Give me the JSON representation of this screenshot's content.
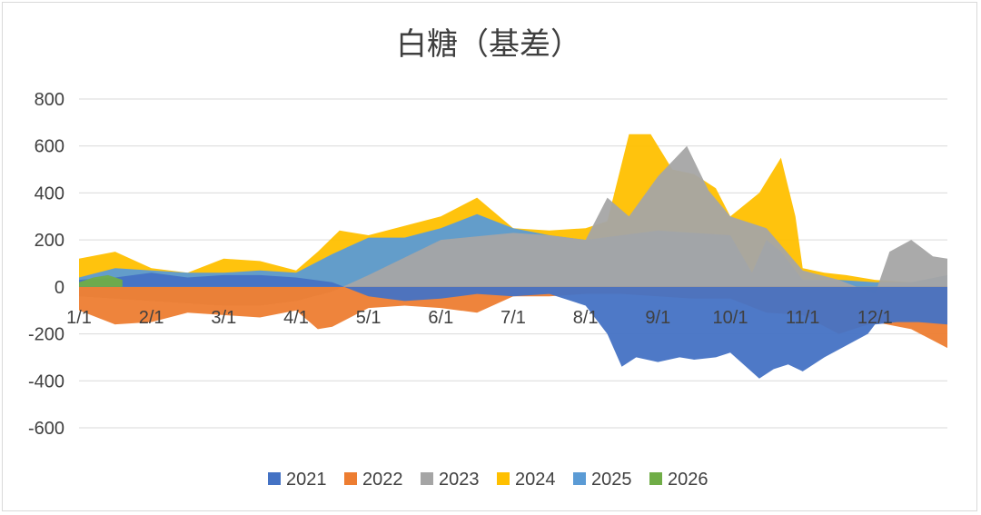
{
  "chart_data": {
    "type": "area",
    "title": "白糖（基差）",
    "xlabel": "",
    "ylabel": "",
    "ylim": [
      -600,
      800
    ],
    "y_ticks": [
      800,
      600,
      400,
      200,
      0,
      -200,
      -400,
      -600
    ],
    "y_tick_labels": [
      "800",
      "600",
      "400",
      "200",
      "0",
      "-200",
      "-400",
      "-600"
    ],
    "x_ticks": [
      {
        "label": "1/1",
        "month": 0
      },
      {
        "label": "2/1",
        "month": 1
      },
      {
        "label": "3/1",
        "month": 2
      },
      {
        "label": "4/1",
        "month": 3
      },
      {
        "label": "5/1",
        "month": 4
      },
      {
        "label": "6/1",
        "month": 5
      },
      {
        "label": "7/1",
        "month": 6
      },
      {
        "label": "8/1",
        "month": 7
      },
      {
        "label": "9/1",
        "month": 8
      },
      {
        "label": "10/1",
        "month": 9
      },
      {
        "label": "11/1",
        "month": 10
      },
      {
        "label": "12/1",
        "month": 11
      }
    ],
    "grid": true,
    "legend_position": "bottom",
    "x_unit": "month (0 = 1/1, 12 = end of year)",
    "series": [
      {
        "name": "2021",
        "color": "#4472c4",
        "draw_order": 5,
        "x": [
          0,
          0.5,
          1,
          1.5,
          2,
          2.5,
          3,
          3.5,
          4,
          4.5,
          5,
          5.5,
          6,
          6.5,
          7,
          7.3,
          7.5,
          7.7,
          8,
          8.3,
          8.5,
          8.8,
          9,
          9.4,
          9.6,
          9.8,
          10,
          10.3,
          10.6,
          10.9,
          11,
          11.3,
          11.6,
          12
        ],
        "values": [
          30,
          40,
          60,
          40,
          50,
          50,
          40,
          20,
          -40,
          -60,
          -50,
          -30,
          -40,
          -30,
          -80,
          -200,
          -340,
          -300,
          -320,
          -300,
          -310,
          -300,
          -280,
          -390,
          -350,
          -330,
          -360,
          -300,
          -250,
          -200,
          -160,
          -150,
          -150,
          -160
        ]
      },
      {
        "name": "2022",
        "color": "#ed7d31",
        "draw_order": 4,
        "x": [
          0,
          0.5,
          1,
          1.5,
          2,
          2.5,
          3,
          3.3,
          3.5,
          4,
          4.5,
          5,
          5.5,
          6,
          6.5,
          7,
          7.5,
          8,
          8.5,
          9,
          9.5,
          10,
          10.5,
          11,
          11.5,
          12
        ],
        "values": [
          -100,
          -160,
          -150,
          -110,
          -120,
          -130,
          -100,
          -180,
          -170,
          -90,
          -80,
          -90,
          -110,
          -40,
          -40,
          -30,
          -30,
          -40,
          -50,
          -50,
          -110,
          -120,
          -200,
          -150,
          -180,
          -260
        ]
      },
      {
        "name": "2023",
        "color": "#a5a5a5",
        "draw_order": 3,
        "x": [
          0,
          0.5,
          1,
          1.5,
          2,
          2.5,
          3,
          3.5,
          4,
          5,
          6,
          6.5,
          7,
          7.3,
          7.6,
          8,
          8.4,
          8.7,
          9,
          9.5,
          10,
          10.5,
          11,
          11.2,
          11.5,
          11.8,
          12
        ],
        "values": [
          -40,
          -50,
          -60,
          -70,
          -80,
          -80,
          -60,
          -20,
          50,
          200,
          230,
          220,
          200,
          380,
          300,
          470,
          600,
          410,
          300,
          250,
          70,
          30,
          -30,
          150,
          200,
          130,
          120
        ]
      },
      {
        "name": "2024",
        "color": "#ffc000",
        "draw_order": 1,
        "x": [
          0,
          0.5,
          1,
          1.5,
          2,
          2.5,
          3,
          3.3,
          3.6,
          4,
          4.5,
          5,
          5.5,
          6,
          6.5,
          7,
          7.3,
          7.6,
          7.9,
          8.2,
          8.5,
          8.8,
          9,
          9.4,
          9.7,
          9.9,
          10,
          10.3,
          10.6,
          11,
          11.5,
          12
        ],
        "values": [
          120,
          150,
          80,
          60,
          120,
          110,
          70,
          150,
          240,
          220,
          260,
          300,
          380,
          250,
          240,
          250,
          280,
          650,
          650,
          500,
          480,
          420,
          300,
          400,
          550,
          300,
          80,
          60,
          50,
          30,
          20,
          20
        ]
      },
      {
        "name": "2025",
        "color": "#5b9bd5",
        "draw_order": 2,
        "x": [
          0,
          0.5,
          1,
          1.5,
          2,
          2.5,
          3,
          3.5,
          4,
          4.5,
          5,
          5.5,
          6,
          6.5,
          7,
          7.5,
          8,
          8.5,
          9,
          9.3,
          9.5,
          9.7,
          10,
          10.5,
          11,
          11.5,
          12
        ],
        "values": [
          40,
          80,
          70,
          60,
          60,
          70,
          60,
          140,
          210,
          210,
          250,
          310,
          250,
          220,
          200,
          220,
          240,
          230,
          220,
          60,
          200,
          150,
          30,
          30,
          20,
          20,
          50
        ]
      },
      {
        "name": "2026",
        "color": "#70ad47",
        "draw_order": 6,
        "x": [
          0,
          0.2,
          0.4,
          0.6
        ],
        "values": [
          20,
          40,
          50,
          30
        ]
      }
    ]
  }
}
